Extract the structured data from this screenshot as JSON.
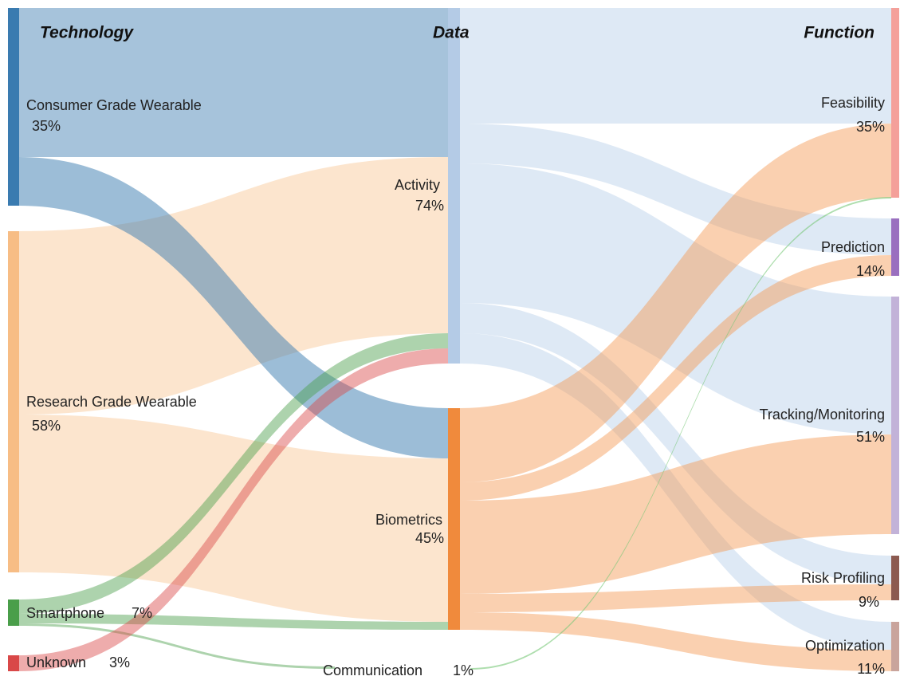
{
  "columns": [
    {
      "title": "Technology"
    },
    {
      "title": "Data"
    },
    {
      "title": "Function"
    }
  ],
  "nodes": [
    {
      "label": "Consumer Grade Wearable",
      "percent": "35%"
    },
    {
      "label": "Research Grade Wearable",
      "percent": "58%"
    },
    {
      "label": "Smartphone",
      "percent": "7%"
    },
    {
      "label": "Unknown",
      "percent": "3%"
    },
    {
      "label": "Activity",
      "percent": "74%"
    },
    {
      "label": "Biometrics",
      "percent": "45%"
    },
    {
      "label": "Communication",
      "percent": "1%"
    },
    {
      "label": "Feasibility",
      "percent": "35%"
    },
    {
      "label": "Prediction",
      "percent": "14%"
    },
    {
      "label": "Tracking/Monitoring",
      "percent": "51%"
    },
    {
      "label": "Risk Profiling",
      "percent": "9%"
    },
    {
      "label": "Optimization",
      "percent": "11%"
    }
  ]
}
